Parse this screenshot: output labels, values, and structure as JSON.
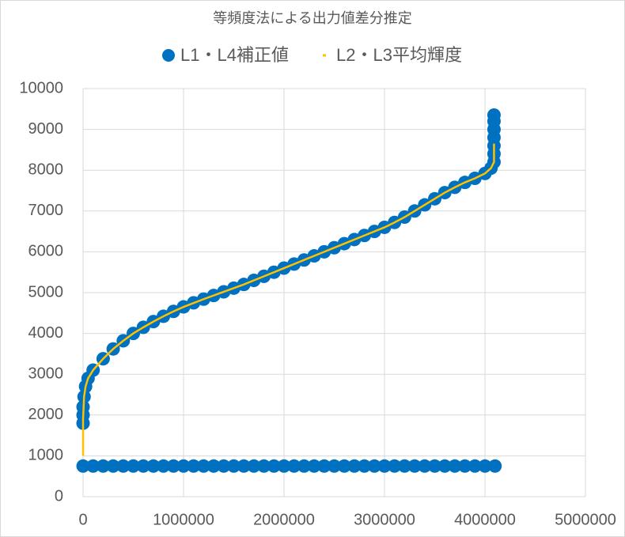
{
  "chart_data": {
    "type": "scatter",
    "title": "等頻度法による出力値差分推定",
    "legend": "top",
    "grid": true,
    "xlim": [
      0,
      5000000
    ],
    "xticks": [
      0,
      1000000,
      2000000,
      3000000,
      4000000,
      5000000
    ],
    "ylim": [
      0,
      10000
    ],
    "yticks": [
      0,
      1000,
      2000,
      3000,
      4000,
      5000,
      6000,
      7000,
      8000,
      9000,
      10000
    ],
    "series": [
      {
        "name": "L1・L4補正値",
        "color": "#0070c0",
        "mode": "markers",
        "x": [
          0,
          0,
          0,
          10000,
          25000,
          50000,
          100000,
          200000,
          300000,
          400000,
          500000,
          600000,
          700000,
          800000,
          900000,
          1000000,
          1100000,
          1200000,
          1300000,
          1400000,
          1500000,
          1600000,
          1700000,
          1800000,
          1900000,
          2000000,
          2100000,
          2200000,
          2300000,
          2400000,
          2500000,
          2600000,
          2700000,
          2800000,
          2900000,
          3000000,
          3100000,
          3200000,
          3300000,
          3400000,
          3500000,
          3600000,
          3700000,
          3800000,
          3900000,
          4000000,
          4060000,
          4090000,
          4090000,
          4090000,
          4090000,
          4090000,
          4090000,
          4090000,
          0,
          100000,
          200000,
          300000,
          400000,
          500000,
          600000,
          700000,
          800000,
          900000,
          1000000,
          1100000,
          1200000,
          1300000,
          1400000,
          1500000,
          1600000,
          1700000,
          1800000,
          1900000,
          2000000,
          2100000,
          2200000,
          2300000,
          2400000,
          2500000,
          2600000,
          2700000,
          2800000,
          2900000,
          3000000,
          3100000,
          3200000,
          3300000,
          3400000,
          3500000,
          3600000,
          3700000,
          3800000,
          3900000,
          4000000,
          4100000
        ],
        "values": [
          1800,
          2000,
          2200,
          2450,
          2700,
          2900,
          3100,
          3380,
          3620,
          3820,
          4000,
          4150,
          4290,
          4420,
          4540,
          4650,
          4750,
          4840,
          4930,
          5020,
          5110,
          5200,
          5300,
          5400,
          5500,
          5600,
          5700,
          5800,
          5900,
          6000,
          6100,
          6200,
          6300,
          6400,
          6500,
          6600,
          6720,
          6850,
          7000,
          7150,
          7300,
          7450,
          7580,
          7700,
          7800,
          7920,
          8050,
          8200,
          8400,
          8600,
          8800,
          9000,
          9200,
          9350,
          750,
          750,
          750,
          750,
          750,
          750,
          750,
          750,
          750,
          750,
          750,
          750,
          750,
          750,
          750,
          750,
          750,
          750,
          750,
          750,
          750,
          750,
          750,
          750,
          750,
          750,
          750,
          750,
          750,
          750,
          750,
          750,
          750,
          750,
          750,
          750,
          750,
          750,
          750,
          750,
          750,
          750
        ]
      },
      {
        "name": "L2・L3平均輝度",
        "color": "#ffc000",
        "mode": "line",
        "x": [
          0,
          0,
          10000,
          25000,
          50000,
          100000,
          200000,
          300000,
          400000,
          500000,
          600000,
          700000,
          800000,
          900000,
          1000000,
          1200000,
          1400000,
          1600000,
          1800000,
          2000000,
          2200000,
          2400000,
          2600000,
          2800000,
          3000000,
          3100000,
          3200000,
          3300000,
          3400000,
          3500000,
          3600000,
          3700000,
          3800000,
          3900000,
          4000000,
          4060000,
          4090000,
          4090000
        ],
        "values": [
          1000,
          1900,
          2450,
          2700,
          2900,
          3100,
          3380,
          3620,
          3820,
          4000,
          4150,
          4290,
          4420,
          4540,
          4650,
          4840,
          5020,
          5200,
          5400,
          5600,
          5800,
          6000,
          6200,
          6400,
          6600,
          6720,
          6850,
          7000,
          7150,
          7300,
          7450,
          7580,
          7700,
          7800,
          7920,
          8050,
          8200,
          8650
        ]
      }
    ]
  }
}
